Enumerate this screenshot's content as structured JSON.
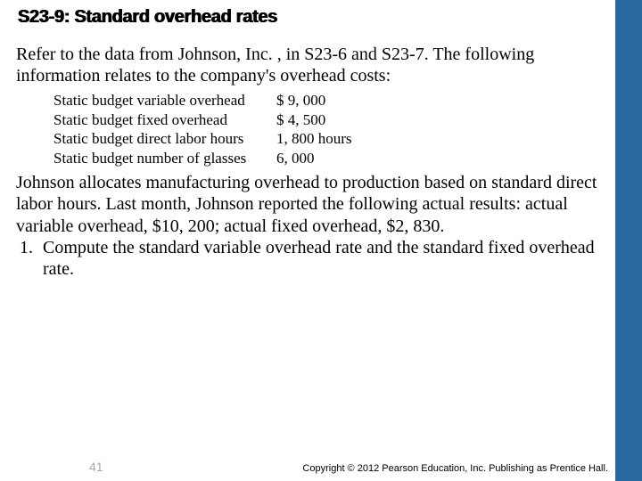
{
  "title": "S23-9: Standard overhead rates",
  "intro": "Refer to the data from Johnson, Inc. , in S23-6 and S23-7. The following information relates to the company's overhead costs:",
  "data_rows": [
    {
      "label": "Static budget variable overhead",
      "value": "$ 9, 000"
    },
    {
      "label": "Static budget fixed overhead",
      "value": " $ 4, 500"
    },
    {
      "label": "Static budget direct labor hours",
      "value": "   1, 800 hours"
    },
    {
      "label": "Static budget number of glasses",
      "value": "   6, 000"
    }
  ],
  "body": "Johnson allocates manufacturing overhead to production based on standard direct labor hours. Last month, Johnson reported the following actual results: actual variable overhead, $10, 200; actual fixed overhead, $2, 830.",
  "question_number": "1.",
  "question_text": "Compute the standard variable overhead rate and the standard fixed overhead rate.",
  "page_number": "41",
  "copyright": "Copyright © 2012 Pearson Education, Inc. Publishing as Prentice Hall.",
  "colors": {
    "sidebar": "#2968a0",
    "background": "#ffffff",
    "text": "#000000",
    "page_num": "#a9a9a9"
  }
}
